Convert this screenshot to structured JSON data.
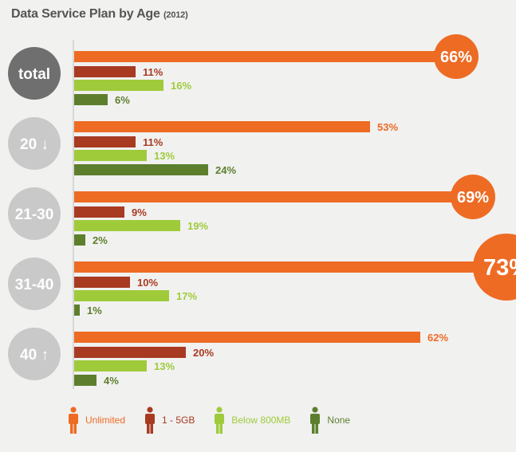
{
  "title": "Data Service Plan by Age",
  "title_year": "(2012)",
  "chart_data": {
    "type": "bar",
    "orientation": "horizontal",
    "title": "Data Service Plan by Age (2012)",
    "categories": [
      "total",
      "20 ↓",
      "21-30",
      "31-40",
      "40 ↑"
    ],
    "series": [
      {
        "name": "Unlimited",
        "color": "#ee6b24",
        "values": [
          66,
          53,
          69,
          73,
          62
        ]
      },
      {
        "name": "1 - 5GB",
        "color": "#a83a22",
        "values": [
          11,
          11,
          9,
          10,
          20
        ]
      },
      {
        "name": "Below 800MB",
        "color": "#9fcb3a",
        "values": [
          16,
          13,
          19,
          17,
          13
        ]
      },
      {
        "name": "None",
        "color": "#5d7f2d",
        "values": [
          6,
          24,
          2,
          1,
          4
        ]
      }
    ],
    "value_suffix": "%",
    "group_circle_colors": [
      "#6f6f6f",
      "#c9c9c9",
      "#c9c9c9",
      "#c9c9c9",
      "#c9c9c9"
    ],
    "highlighted_values": [
      "66%",
      "69%",
      "73%"
    ],
    "legend_position": "bottom",
    "grid": false
  }
}
